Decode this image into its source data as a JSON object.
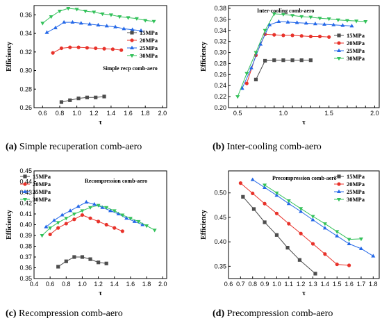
{
  "chart_data": [
    {
      "type": "line",
      "annotation": "Simple recp comb-aero",
      "caption_label": "(a)",
      "caption_text": " Simple recuperation comb-aero",
      "xlabel": "τ",
      "ylabel": "Efficiency",
      "xlim": [
        0.5,
        2.05
      ],
      "ylim": [
        0.26,
        0.37
      ],
      "xticks": [
        0.6,
        0.8,
        1.0,
        1.2,
        1.4,
        1.6,
        1.8,
        2.0
      ],
      "yticks": [
        0.26,
        0.28,
        0.3,
        0.32,
        0.34,
        0.36
      ],
      "legend_position": "right",
      "series": [
        {
          "name": "15MPa",
          "color": "#4d4d4d",
          "marker": "square",
          "x": [
            0.82,
            0.92,
            1.02,
            1.12,
            1.22,
            1.32
          ],
          "y": [
            0.266,
            0.268,
            0.27,
            0.271,
            0.271,
            0.272
          ]
        },
        {
          "name": "20MPa",
          "color": "#e8322a",
          "marker": "circle",
          "x": [
            0.72,
            0.82,
            0.92,
            1.02,
            1.12,
            1.22,
            1.32,
            1.42,
            1.52
          ],
          "y": [
            0.319,
            0.324,
            0.325,
            0.325,
            0.3245,
            0.324,
            0.3235,
            0.323,
            0.322
          ]
        },
        {
          "name": "25MPa",
          "color": "#2468e8",
          "marker": "triangle",
          "x": [
            0.65,
            0.75,
            0.85,
            0.95,
            1.05,
            1.15,
            1.25,
            1.35,
            1.45,
            1.55,
            1.65,
            1.75
          ],
          "y": [
            0.341,
            0.346,
            0.352,
            0.352,
            0.351,
            0.35,
            0.349,
            0.348,
            0.347,
            0.345,
            0.344,
            0.343
          ]
        },
        {
          "name": "30MPa",
          "color": "#33c15a",
          "marker": "triangle-down",
          "x": [
            0.6,
            0.7,
            0.8,
            0.9,
            1.0,
            1.1,
            1.2,
            1.3,
            1.4,
            1.5,
            1.6,
            1.7,
            1.8,
            1.9
          ],
          "y": [
            0.351,
            0.358,
            0.364,
            0.367,
            0.366,
            0.364,
            0.363,
            0.361,
            0.36,
            0.358,
            0.357,
            0.356,
            0.354,
            0.353
          ]
        }
      ]
    },
    {
      "type": "line",
      "annotation": "Inter-cooling comb-aero",
      "caption_label": "(b)",
      "caption_text": " Inter-cooling comb-aero",
      "xlabel": "τ",
      "ylabel": "Efficiency",
      "xlim": [
        0.4,
        2.05
      ],
      "ylim": [
        0.2,
        0.385
      ],
      "xticks": [
        0.5,
        0.6,
        0.7,
        0.8,
        0.9,
        1.0,
        1.1,
        1.2,
        1.3,
        1.4,
        1.5,
        1.6,
        1.7,
        1.8,
        1.9,
        2.0
      ],
      "xtick_labels_shown": [
        0.5,
        1.0,
        1.5,
        2.0
      ],
      "yticks": [
        0.2,
        0.22,
        0.24,
        0.26,
        0.28,
        0.3,
        0.32,
        0.34,
        0.36,
        0.38
      ],
      "legend_position": "right",
      "series": [
        {
          "name": "15MPa",
          "color": "#4d4d4d",
          "marker": "square",
          "x": [
            0.7,
            0.8,
            0.9,
            1.0,
            1.1,
            1.2,
            1.3
          ],
          "y": [
            0.251,
            0.285,
            0.286,
            0.286,
            0.286,
            0.286,
            0.286
          ]
        },
        {
          "name": "20MPa",
          "color": "#e8322a",
          "marker": "circle",
          "x": [
            0.6,
            0.7,
            0.8,
            0.9,
            1.0,
            1.1,
            1.2,
            1.3,
            1.4,
            1.5
          ],
          "y": [
            0.244,
            0.295,
            0.333,
            0.332,
            0.331,
            0.331,
            0.33,
            0.329,
            0.329,
            0.328
          ]
        },
        {
          "name": "25MPa",
          "color": "#2468e8",
          "marker": "triangle",
          "x": [
            0.55,
            0.65,
            0.75,
            0.85,
            0.95,
            1.05,
            1.15,
            1.25,
            1.35,
            1.45,
            1.55,
            1.65,
            1.75
          ],
          "y": [
            0.235,
            0.272,
            0.315,
            0.35,
            0.356,
            0.355,
            0.354,
            0.353,
            0.352,
            0.351,
            0.35,
            0.349,
            0.348
          ]
        },
        {
          "name": "30MPa",
          "color": "#33c15a",
          "marker": "triangle-down",
          "x": [
            0.5,
            0.6,
            0.7,
            0.8,
            0.9,
            1.0,
            1.1,
            1.2,
            1.3,
            1.4,
            1.5,
            1.6,
            1.7,
            1.8,
            1.9
          ],
          "y": [
            0.22,
            0.262,
            0.3,
            0.34,
            0.37,
            0.369,
            0.367,
            0.365,
            0.364,
            0.362,
            0.361,
            0.359,
            0.358,
            0.357,
            0.356
          ]
        }
      ]
    },
    {
      "type": "line",
      "annotation": "Recompression comb-aero",
      "caption_label": "(c)",
      "caption_text": " Recompression comb-aero",
      "xlabel": "τ",
      "ylabel": "Efficiency",
      "xlim": [
        0.4,
        2.05
      ],
      "ylim": [
        0.35,
        0.45
      ],
      "xticks": [
        0.4,
        0.6,
        0.8,
        1.0,
        1.2,
        1.4,
        1.6,
        1.8,
        2.0
      ],
      "yticks": [
        0.35,
        0.36,
        0.37,
        0.38,
        0.39,
        0.4,
        0.41,
        0.42,
        0.43,
        0.44,
        0.45
      ],
      "legend_position": "top-left",
      "series": [
        {
          "name": "15MPa",
          "color": "#4d4d4d",
          "marker": "square",
          "x": [
            0.7,
            0.8,
            0.9,
            1.0,
            1.1,
            1.2,
            1.3
          ],
          "y": [
            0.361,
            0.366,
            0.37,
            0.37,
            0.368,
            0.365,
            0.364
          ]
        },
        {
          "name": "20MPa",
          "color": "#e8322a",
          "marker": "circle",
          "x": [
            0.6,
            0.7,
            0.8,
            0.9,
            1.0,
            1.1,
            1.2,
            1.3,
            1.4,
            1.5
          ],
          "y": [
            0.391,
            0.397,
            0.401,
            0.405,
            0.409,
            0.406,
            0.403,
            0.4,
            0.397,
            0.394
          ]
        },
        {
          "name": "25MPa",
          "color": "#2468e8",
          "marker": "triangle",
          "x": [
            0.55,
            0.65,
            0.75,
            0.85,
            0.95,
            1.05,
            1.15,
            1.25,
            1.35,
            1.45,
            1.55,
            1.65,
            1.75
          ],
          "y": [
            0.398,
            0.404,
            0.409,
            0.413,
            0.417,
            0.421,
            0.419,
            0.416,
            0.413,
            0.41,
            0.406,
            0.403,
            0.4
          ]
        },
        {
          "name": "30MPa",
          "color": "#33c15a",
          "marker": "triangle-down",
          "x": [
            0.5,
            0.6,
            0.7,
            0.8,
            0.9,
            1.0,
            1.1,
            1.2,
            1.3,
            1.4,
            1.5,
            1.6,
            1.7,
            1.8,
            1.9
          ],
          "y": [
            0.39,
            0.397,
            0.402,
            0.406,
            0.41,
            0.413,
            0.416,
            0.418,
            0.416,
            0.413,
            0.409,
            0.406,
            0.403,
            0.399,
            0.395
          ]
        }
      ]
    },
    {
      "type": "line",
      "annotation": "Precompression comb-aero",
      "caption_label": "(d)",
      "caption_text": " Precompression comb-aero",
      "xlabel": "τ",
      "ylabel": "Efficiency",
      "xlim": [
        0.6,
        1.85
      ],
      "ylim": [
        0.325,
        0.545
      ],
      "xticks": [
        0.6,
        0.7,
        0.8,
        0.9,
        1.0,
        1.1,
        1.2,
        1.3,
        1.4,
        1.5,
        1.6,
        1.7,
        1.8
      ],
      "yticks": [
        0.35,
        0.4,
        0.45,
        0.5
      ],
      "legend_position": "top-right",
      "series": [
        {
          "name": "15MPa",
          "color": "#4d4d4d",
          "marker": "square",
          "x": [
            0.72,
            0.81,
            0.9,
            1.0,
            1.09,
            1.19,
            1.32
          ],
          "y": [
            0.492,
            0.467,
            0.44,
            0.414,
            0.388,
            0.363,
            0.335
          ]
        },
        {
          "name": "20MPa",
          "color": "#e8322a",
          "marker": "circle",
          "x": [
            0.7,
            0.8,
            0.9,
            1.0,
            1.1,
            1.2,
            1.3,
            1.4,
            1.5,
            1.6
          ],
          "y": [
            0.52,
            0.499,
            0.478,
            0.458,
            0.437,
            0.417,
            0.396,
            0.375,
            0.354,
            0.352
          ]
        },
        {
          "name": "25MPa",
          "color": "#2468e8",
          "marker": "triangle",
          "x": [
            0.8,
            0.9,
            1.0,
            1.1,
            1.2,
            1.3,
            1.4,
            1.5,
            1.6,
            1.7,
            1.8
          ],
          "y": [
            0.527,
            0.511,
            0.495,
            0.478,
            0.462,
            0.445,
            0.428,
            0.412,
            0.396,
            0.386,
            0.371
          ]
        },
        {
          "name": "30MPa",
          "color": "#33c15a",
          "marker": "triangle-down",
          "x": [
            0.9,
            1.0,
            1.1,
            1.2,
            1.3,
            1.4,
            1.5,
            1.6,
            1.7
          ],
          "y": [
            0.516,
            0.5,
            0.484,
            0.468,
            0.452,
            0.437,
            0.421,
            0.405,
            0.406
          ]
        }
      ]
    }
  ]
}
